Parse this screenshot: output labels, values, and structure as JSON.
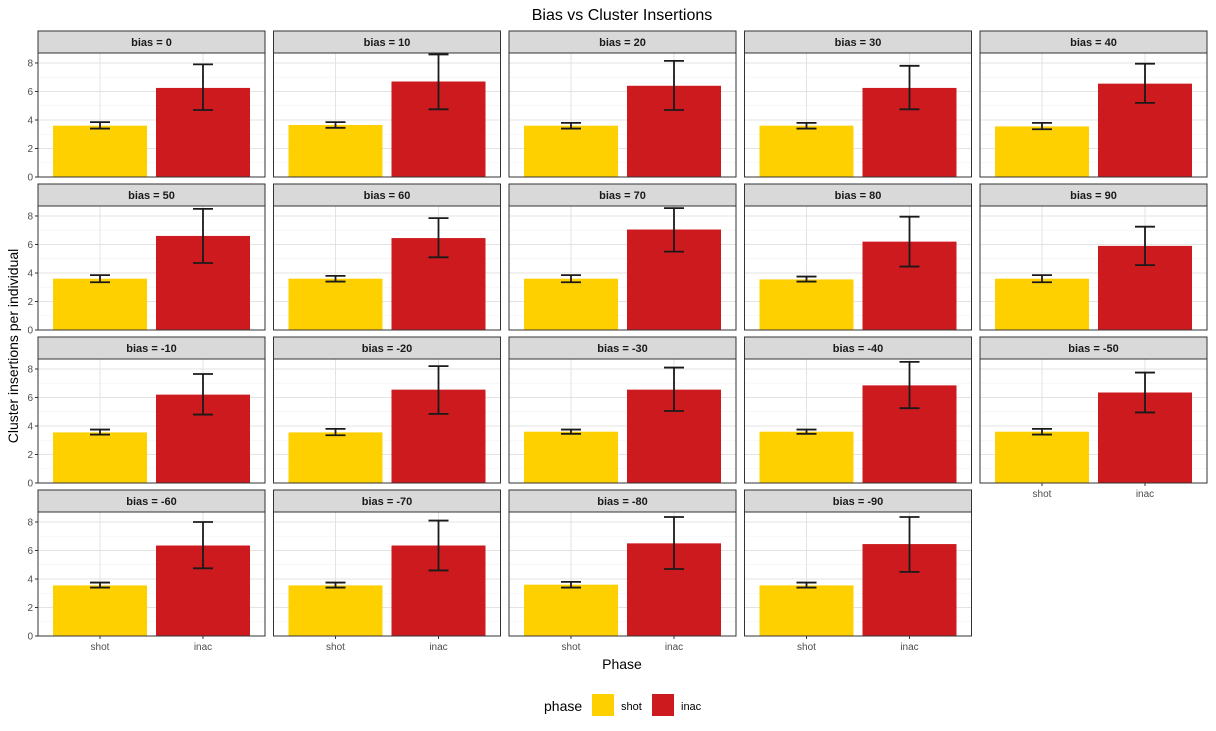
{
  "chart_data": {
    "type": "bar",
    "title": "Bias vs Cluster Insertions",
    "xlabel": "Phase",
    "ylabel": "Cluster insertions per individual",
    "categories": [
      "shot",
      "inac"
    ],
    "ylim": [
      0,
      8.7
    ],
    "yticks": [
      0,
      2,
      4,
      6,
      8
    ],
    "grid": true,
    "legend": {
      "title": "phase",
      "placement": "bottom",
      "items": [
        {
          "label": "shot",
          "color": "#FFD000"
        },
        {
          "label": "inac",
          "color": "#CC1A1F"
        }
      ]
    },
    "colors": {
      "shot": "#FFD000",
      "inac": "#CC1A1F"
    },
    "facets": [
      {
        "label": "bias = 0",
        "values": [
          3.6,
          6.25
        ],
        "err_low": [
          3.4,
          4.7
        ],
        "err_high": [
          3.85,
          7.9
        ]
      },
      {
        "label": "bias = 10",
        "values": [
          3.65,
          6.7
        ],
        "err_low": [
          3.45,
          4.75
        ],
        "err_high": [
          3.85,
          8.6
        ]
      },
      {
        "label": "bias = 20",
        "values": [
          3.6,
          6.4
        ],
        "err_low": [
          3.4,
          4.7
        ],
        "err_high": [
          3.8,
          8.15
        ]
      },
      {
        "label": "bias = 30",
        "values": [
          3.6,
          6.25
        ],
        "err_low": [
          3.4,
          4.75
        ],
        "err_high": [
          3.8,
          7.8
        ]
      },
      {
        "label": "bias = 40",
        "values": [
          3.55,
          6.55
        ],
        "err_low": [
          3.35,
          5.2
        ],
        "err_high": [
          3.8,
          7.95
        ]
      },
      {
        "label": "bias = 50",
        "values": [
          3.6,
          6.6
        ],
        "err_low": [
          3.35,
          4.7
        ],
        "err_high": [
          3.85,
          8.5
        ]
      },
      {
        "label": "bias = 60",
        "values": [
          3.6,
          6.45
        ],
        "err_low": [
          3.4,
          5.1
        ],
        "err_high": [
          3.8,
          7.85
        ]
      },
      {
        "label": "bias = 70",
        "values": [
          3.6,
          7.05
        ],
        "err_low": [
          3.35,
          5.5
        ],
        "err_high": [
          3.85,
          8.55
        ]
      },
      {
        "label": "bias = 80",
        "values": [
          3.55,
          6.2
        ],
        "err_low": [
          3.4,
          4.45
        ],
        "err_high": [
          3.75,
          7.95
        ]
      },
      {
        "label": "bias = 90",
        "values": [
          3.6,
          5.9
        ],
        "err_low": [
          3.35,
          4.55
        ],
        "err_high": [
          3.85,
          7.25
        ]
      },
      {
        "label": "bias = -10",
        "values": [
          3.55,
          6.2
        ],
        "err_low": [
          3.4,
          4.8
        ],
        "err_high": [
          3.75,
          7.65
        ]
      },
      {
        "label": "bias = -20",
        "values": [
          3.55,
          6.55
        ],
        "err_low": [
          3.35,
          4.85
        ],
        "err_high": [
          3.8,
          8.2
        ]
      },
      {
        "label": "bias = -30",
        "values": [
          3.6,
          6.55
        ],
        "err_low": [
          3.45,
          5.05
        ],
        "err_high": [
          3.75,
          8.1
        ]
      },
      {
        "label": "bias = -40",
        "values": [
          3.6,
          6.85
        ],
        "err_low": [
          3.45,
          5.25
        ],
        "err_high": [
          3.75,
          8.5
        ]
      },
      {
        "label": "bias = -50",
        "values": [
          3.6,
          6.35
        ],
        "err_low": [
          3.4,
          4.95
        ],
        "err_high": [
          3.8,
          7.75
        ]
      },
      {
        "label": "bias = -60",
        "values": [
          3.55,
          6.35
        ],
        "err_low": [
          3.4,
          4.75
        ],
        "err_high": [
          3.75,
          8.0
        ]
      },
      {
        "label": "bias = -70",
        "values": [
          3.55,
          6.35
        ],
        "err_low": [
          3.4,
          4.6
        ],
        "err_high": [
          3.75,
          8.1
        ]
      },
      {
        "label": "bias = -80",
        "values": [
          3.6,
          6.5
        ],
        "err_low": [
          3.4,
          4.7
        ],
        "err_high": [
          3.8,
          8.35
        ]
      },
      {
        "label": "bias = -90",
        "values": [
          3.55,
          6.45
        ],
        "err_low": [
          3.4,
          4.5
        ],
        "err_high": [
          3.75,
          8.35
        ]
      }
    ]
  }
}
